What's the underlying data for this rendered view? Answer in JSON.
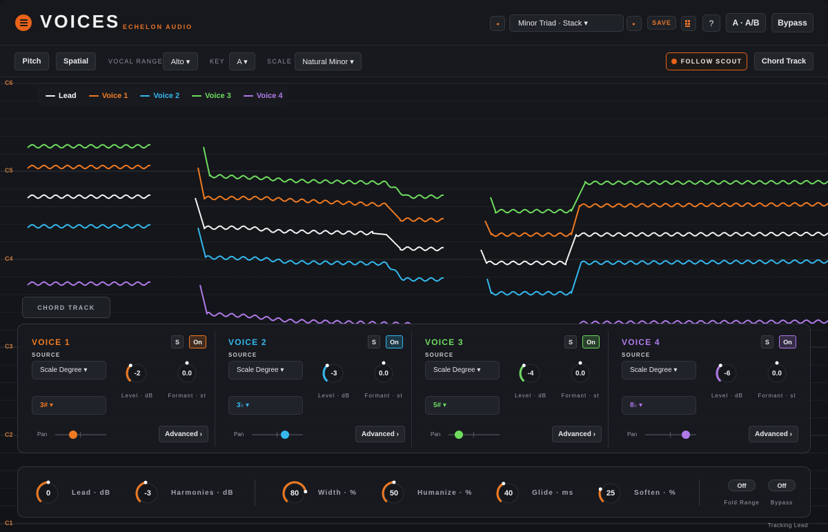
{
  "header": {
    "title": "VOICES",
    "brand": "ECHELON AUDIO",
    "prev_label": "◂",
    "next_label": "▸",
    "preset": "Minor Triad · Stack ▾",
    "save_label": "SAVE",
    "grid_icon": "grid-icon",
    "help_label": "?",
    "ab_label": "A · A/B",
    "bypass_label": "Bypass"
  },
  "toolbar": {
    "pitch_label": "Pitch",
    "spatial_label": "Spatial",
    "vocal_range_label": "VOCAL RANGE",
    "vocal_range_value": "Alto ▾",
    "key_label": "KEY",
    "key_value": "A ▾",
    "scale_label": "SCALE",
    "scale_value": "Natural Minor ▾",
    "follow_label": "FOLLOW SCOUT",
    "chord_track_label": "Chord Track"
  },
  "graph": {
    "note_labels": [
      "C6",
      "C5",
      "C4",
      "C3",
      "C2",
      "C1"
    ],
    "legend": [
      {
        "name": "Lead",
        "color": "#f2f2f2"
      },
      {
        "name": "Voice 1",
        "color": "#f07a22"
      },
      {
        "name": "Voice 2",
        "color": "#35b8ee"
      },
      {
        "name": "Voice 3",
        "color": "#6fdc5f"
      },
      {
        "name": "Voice 4",
        "color": "#b07ae8"
      }
    ],
    "chord_overlay_label": "CHORD TRACK"
  },
  "voices": [
    {
      "name": "VOICE 1",
      "color": "#f07a22",
      "source_label": "SOURCE",
      "solo": "S",
      "on": "On",
      "source": "Scale Degree ▾",
      "interval": "3# ▾",
      "level": "-2",
      "level_label": "Level · dB",
      "formant": "0.0",
      "formant_label": "Formant · st",
      "pan_label": "Pan",
      "pan": -0.3,
      "advanced": "Advanced ›"
    },
    {
      "name": "VOICE 2",
      "color": "#35b8ee",
      "source_label": "SOURCE",
      "solo": "S",
      "on": "On",
      "source": "Scale Degree ▾",
      "interval": "3♭ ▾",
      "level": "-3",
      "level_label": "Level · dB",
      "formant": "0.0",
      "formant_label": "Formant · st",
      "pan_label": "Pan",
      "pan": 0.3,
      "advanced": "Advanced ›"
    },
    {
      "name": "VOICE 3",
      "color": "#6fdc5f",
      "source_label": "SOURCE",
      "solo": "S",
      "on": "On",
      "source": "Scale Degree ▾",
      "interval": "5# ▾",
      "level": "-4",
      "level_label": "Level · dB",
      "formant": "0.0",
      "formant_label": "Formant · st",
      "pan_label": "Pan",
      "pan": -0.6,
      "advanced": "Advanced ›"
    },
    {
      "name": "VOICE 4",
      "color": "#b07ae8",
      "source_label": "SOURCE",
      "solo": "S",
      "on": "On",
      "source": "Scale Degree ▾",
      "interval": "8♭ ▾",
      "level": "-6",
      "level_label": "Level · dB",
      "formant": "0.0",
      "formant_label": "Formant · st",
      "pan_label": "Pan",
      "pan": 0.6,
      "advanced": "Advanced ›"
    }
  ],
  "bottom": {
    "knobs": [
      {
        "value": "0",
        "label": "Lead · dB",
        "fill": 0.5
      },
      {
        "value": "-3",
        "label": "Harmonies · dB",
        "fill": 0.46
      },
      {
        "value": "80",
        "label": "Width · %",
        "fill": 0.8
      },
      {
        "value": "50",
        "label": "Humanize · %",
        "fill": 0.5
      },
      {
        "value": "40",
        "label": "Glide · ms",
        "fill": 0.4
      },
      {
        "value": "25",
        "label": "Soften · %",
        "fill": 0.25
      }
    ],
    "fold_value": "Off",
    "fold_label": "Fold Range",
    "bypass_value": "Off",
    "bypass_label": "Bypass"
  },
  "status": "Tracking Lead"
}
